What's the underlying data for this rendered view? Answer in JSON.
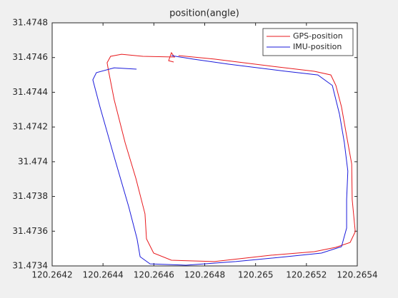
{
  "chart_data": {
    "type": "line",
    "title": "position(angle)",
    "xlim": [
      120.2642,
      120.2654
    ],
    "xticks": [
      120.2642,
      120.2644,
      120.2646,
      120.2648,
      120.265,
      120.2652,
      120.2654
    ],
    "ylim": [
      31.4734,
      31.4748
    ],
    "yticks": [
      31.4734,
      31.4736,
      31.4738,
      31.474,
      31.4742,
      31.4744,
      31.4746,
      31.4748
    ],
    "legend": "top-right",
    "grid": false,
    "series": [
      {
        "name": "GPS-position",
        "color": "#e8191d",
        "x": [
          120.264678,
          120.264658,
          120.264669,
          120.264681,
          120.264557,
          120.264473,
          120.26443,
          120.264416,
          120.264422,
          120.264444,
          120.264487,
          120.264529,
          120.264565,
          120.264571,
          120.264599,
          120.264669,
          120.264838,
          120.265063,
          120.265231,
          120.265316,
          120.265372,
          120.265392,
          120.26538,
          120.265378,
          120.265363,
          120.265338,
          120.265316,
          120.265296,
          120.265231,
          120.265063,
          120.264838,
          120.264697
        ],
        "values": [
          31.474574,
          31.474582,
          31.474628,
          31.474603,
          31.474607,
          31.474619,
          31.474607,
          31.47457,
          31.474521,
          31.474357,
          31.47411,
          31.473905,
          31.4737,
          31.473556,
          31.473474,
          31.473433,
          31.473425,
          31.473462,
          31.473482,
          31.473507,
          31.473535,
          31.473597,
          31.473782,
          31.473987,
          31.47411,
          31.474316,
          31.474439,
          31.4745,
          31.474521,
          31.47455,
          31.474591,
          31.474611
        ]
      },
      {
        "name": "IMU-position",
        "color": "#1a1adb",
        "x": [
          120.264532,
          120.264444,
          120.264374,
          120.26436,
          120.264388,
          120.264444,
          120.264501,
          120.264534,
          120.264546,
          120.264585,
          120.264726,
          120.264922,
          120.265119,
          120.265259,
          120.265338,
          120.265358,
          120.265358,
          120.265363,
          120.265349,
          120.26533,
          120.265302,
          120.265245,
          120.265119,
          120.264894,
          120.264754,
          120.264669
        ],
        "values": [
          31.474533,
          31.474541,
          31.474513,
          31.474472,
          31.474316,
          31.474028,
          31.473741,
          31.473556,
          31.473453,
          31.473412,
          31.473404,
          31.473425,
          31.473453,
          31.473474,
          31.473511,
          31.473618,
          31.473782,
          31.473946,
          31.47411,
          31.474274,
          31.474439,
          31.4745,
          31.474521,
          31.474562,
          31.474591,
          31.474611
        ]
      }
    ]
  }
}
